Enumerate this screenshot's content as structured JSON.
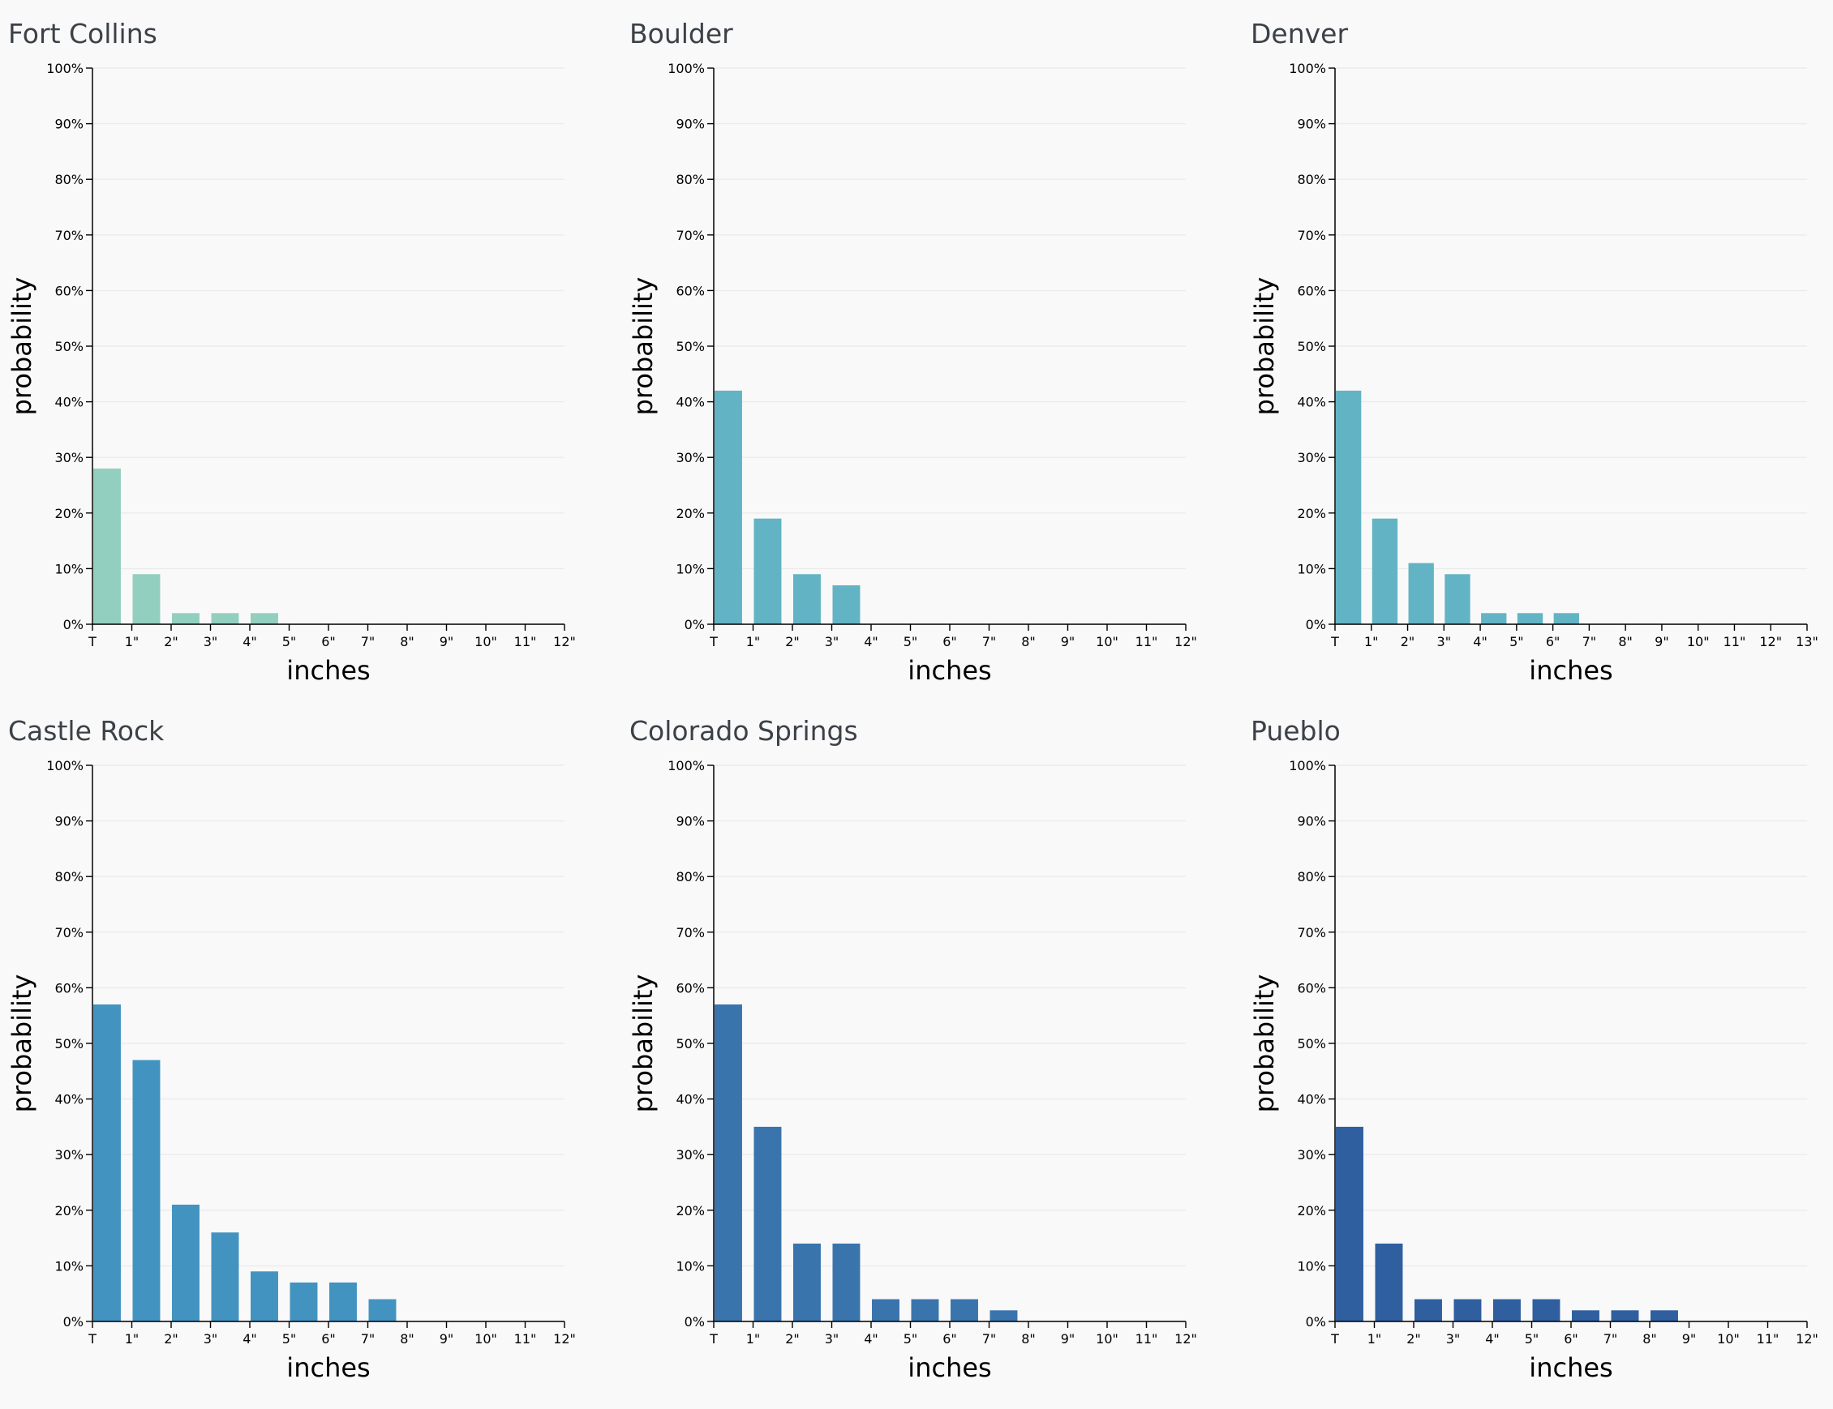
{
  "chart_data": [
    {
      "type": "histogram",
      "title": "Fort Collins",
      "x_label": "inches",
      "y_label": "probability",
      "color": "#93cfbf",
      "bins": [
        {
          "value": 0,
          "label": "T"
        },
        {
          "value": 1,
          "label": "1\""
        },
        {
          "value": 2,
          "label": "2\""
        },
        {
          "value": 3,
          "label": "3\""
        },
        {
          "value": 4,
          "label": "4\""
        },
        {
          "value": 5,
          "label": "5\""
        },
        {
          "value": 6,
          "label": "6\""
        },
        {
          "value": 7,
          "label": "7\""
        },
        {
          "value": 8,
          "label": "8\""
        },
        {
          "value": 9,
          "label": "9\""
        },
        {
          "value": 10,
          "label": "10\""
        },
        {
          "value": 11,
          "label": "11\""
        },
        {
          "value": 12,
          "label": "12\""
        }
      ],
      "values": [
        28,
        9,
        2,
        2,
        2,
        0,
        0,
        0,
        0,
        0,
        0,
        0
      ],
      "xlim": [
        0,
        12
      ],
      "ylim": [
        0,
        100
      ],
      "yticks": [
        {
          "value": 0,
          "label": "0%"
        },
        {
          "value": 10,
          "label": "10%"
        },
        {
          "value": 20,
          "label": "20%"
        },
        {
          "value": 30,
          "label": "30%"
        },
        {
          "value": 40,
          "label": "40%"
        },
        {
          "value": 50,
          "label": "50%"
        },
        {
          "value": 60,
          "label": "60%"
        },
        {
          "value": 70,
          "label": "70%"
        },
        {
          "value": 80,
          "label": "80%"
        },
        {
          "value": 90,
          "label": "90%"
        },
        {
          "value": 100,
          "label": "100%"
        }
      ],
      "grid": true
    },
    {
      "type": "histogram",
      "title": "Boulder",
      "x_label": "inches",
      "y_label": "probability",
      "color": "#62b4c4",
      "bins": [
        {
          "value": 0,
          "label": "T"
        },
        {
          "value": 1,
          "label": "1\""
        },
        {
          "value": 2,
          "label": "2\""
        },
        {
          "value": 3,
          "label": "3\""
        },
        {
          "value": 4,
          "label": "4\""
        },
        {
          "value": 5,
          "label": "5\""
        },
        {
          "value": 6,
          "label": "6\""
        },
        {
          "value": 7,
          "label": "7\""
        },
        {
          "value": 8,
          "label": "8\""
        },
        {
          "value": 9,
          "label": "9\""
        },
        {
          "value": 10,
          "label": "10\""
        },
        {
          "value": 11,
          "label": "11\""
        },
        {
          "value": 12,
          "label": "12\""
        }
      ],
      "values": [
        42,
        19,
        9,
        7,
        0,
        0,
        0,
        0,
        0,
        0,
        0,
        0
      ],
      "xlim": [
        0,
        12
      ],
      "ylim": [
        0,
        100
      ],
      "yticks": [
        {
          "value": 0,
          "label": "0%"
        },
        {
          "value": 10,
          "label": "10%"
        },
        {
          "value": 20,
          "label": "20%"
        },
        {
          "value": 30,
          "label": "30%"
        },
        {
          "value": 40,
          "label": "40%"
        },
        {
          "value": 50,
          "label": "50%"
        },
        {
          "value": 60,
          "label": "60%"
        },
        {
          "value": 70,
          "label": "70%"
        },
        {
          "value": 80,
          "label": "80%"
        },
        {
          "value": 90,
          "label": "90%"
        },
        {
          "value": 100,
          "label": "100%"
        }
      ],
      "grid": true
    },
    {
      "type": "histogram",
      "title": "Denver",
      "x_label": "inches",
      "y_label": "probability",
      "color": "#62b4c4",
      "bins": [
        {
          "value": 0,
          "label": "T"
        },
        {
          "value": 1,
          "label": "1\""
        },
        {
          "value": 2,
          "label": "2\""
        },
        {
          "value": 3,
          "label": "3\""
        },
        {
          "value": 4,
          "label": "4\""
        },
        {
          "value": 5,
          "label": "5\""
        },
        {
          "value": 6,
          "label": "6\""
        },
        {
          "value": 7,
          "label": "7\""
        },
        {
          "value": 8,
          "label": "8\""
        },
        {
          "value": 9,
          "label": "9\""
        },
        {
          "value": 10,
          "label": "10\""
        },
        {
          "value": 11,
          "label": "11\""
        },
        {
          "value": 12,
          "label": "12\""
        },
        {
          "value": 13,
          "label": "13\""
        }
      ],
      "values": [
        42,
        19,
        11,
        9,
        2,
        2,
        2,
        0,
        0,
        0,
        0,
        0,
        0
      ],
      "xlim": [
        0,
        13
      ],
      "ylim": [
        0,
        100
      ],
      "yticks": [
        {
          "value": 0,
          "label": "0%"
        },
        {
          "value": 10,
          "label": "10%"
        },
        {
          "value": 20,
          "label": "20%"
        },
        {
          "value": 30,
          "label": "30%"
        },
        {
          "value": 40,
          "label": "40%"
        },
        {
          "value": 50,
          "label": "50%"
        },
        {
          "value": 60,
          "label": "60%"
        },
        {
          "value": 70,
          "label": "70%"
        },
        {
          "value": 80,
          "label": "80%"
        },
        {
          "value": 90,
          "label": "90%"
        },
        {
          "value": 100,
          "label": "100%"
        }
      ],
      "grid": true
    },
    {
      "type": "histogram",
      "title": "Castle Rock",
      "x_label": "inches",
      "y_label": "probability",
      "color": "#4393c0",
      "bins": [
        {
          "value": 0,
          "label": "T"
        },
        {
          "value": 1,
          "label": "1\""
        },
        {
          "value": 2,
          "label": "2\""
        },
        {
          "value": 3,
          "label": "3\""
        },
        {
          "value": 4,
          "label": "4\""
        },
        {
          "value": 5,
          "label": "5\""
        },
        {
          "value": 6,
          "label": "6\""
        },
        {
          "value": 7,
          "label": "7\""
        },
        {
          "value": 8,
          "label": "8\""
        },
        {
          "value": 9,
          "label": "9\""
        },
        {
          "value": 10,
          "label": "10\""
        },
        {
          "value": 11,
          "label": "11\""
        },
        {
          "value": 12,
          "label": "12\""
        }
      ],
      "values": [
        57,
        47,
        21,
        16,
        9,
        7,
        7,
        4,
        0,
        0,
        0,
        0
      ],
      "xlim": [
        0,
        12
      ],
      "ylim": [
        0,
        100
      ],
      "yticks": [
        {
          "value": 0,
          "label": "0%"
        },
        {
          "value": 10,
          "label": "10%"
        },
        {
          "value": 20,
          "label": "20%"
        },
        {
          "value": 30,
          "label": "30%"
        },
        {
          "value": 40,
          "label": "40%"
        },
        {
          "value": 50,
          "label": "50%"
        },
        {
          "value": 60,
          "label": "60%"
        },
        {
          "value": 70,
          "label": "70%"
        },
        {
          "value": 80,
          "label": "80%"
        },
        {
          "value": 90,
          "label": "90%"
        },
        {
          "value": 100,
          "label": "100%"
        }
      ],
      "grid": true
    },
    {
      "type": "histogram",
      "title": "Colorado Springs",
      "x_label": "inches",
      "y_label": "probability",
      "color": "#3a74ad",
      "bins": [
        {
          "value": 0,
          "label": "T"
        },
        {
          "value": 1,
          "label": "1\""
        },
        {
          "value": 2,
          "label": "2\""
        },
        {
          "value": 3,
          "label": "3\""
        },
        {
          "value": 4,
          "label": "4\""
        },
        {
          "value": 5,
          "label": "5\""
        },
        {
          "value": 6,
          "label": "6\""
        },
        {
          "value": 7,
          "label": "7\""
        },
        {
          "value": 8,
          "label": "8\""
        },
        {
          "value": 9,
          "label": "9\""
        },
        {
          "value": 10,
          "label": "10\""
        },
        {
          "value": 11,
          "label": "11\""
        },
        {
          "value": 12,
          "label": "12\""
        }
      ],
      "values": [
        57,
        35,
        14,
        14,
        4,
        4,
        4,
        2,
        0,
        0,
        0,
        0
      ],
      "xlim": [
        0,
        12
      ],
      "ylim": [
        0,
        100
      ],
      "yticks": [
        {
          "value": 0,
          "label": "0%"
        },
        {
          "value": 10,
          "label": "10%"
        },
        {
          "value": 20,
          "label": "20%"
        },
        {
          "value": 30,
          "label": "30%"
        },
        {
          "value": 40,
          "label": "40%"
        },
        {
          "value": 50,
          "label": "50%"
        },
        {
          "value": 60,
          "label": "60%"
        },
        {
          "value": 70,
          "label": "70%"
        },
        {
          "value": 80,
          "label": "80%"
        },
        {
          "value": 90,
          "label": "90%"
        },
        {
          "value": 100,
          "label": "100%"
        }
      ],
      "grid": true
    },
    {
      "type": "histogram",
      "title": "Pueblo",
      "x_label": "inches",
      "y_label": "probability",
      "color": "#2f5f9f",
      "bins": [
        {
          "value": 0,
          "label": "T"
        },
        {
          "value": 1,
          "label": "1\""
        },
        {
          "value": 2,
          "label": "2\""
        },
        {
          "value": 3,
          "label": "3\""
        },
        {
          "value": 4,
          "label": "4\""
        },
        {
          "value": 5,
          "label": "5\""
        },
        {
          "value": 6,
          "label": "6\""
        },
        {
          "value": 7,
          "label": "7\""
        },
        {
          "value": 8,
          "label": "8\""
        },
        {
          "value": 9,
          "label": "9\""
        },
        {
          "value": 10,
          "label": "10\""
        },
        {
          "value": 11,
          "label": "11\""
        },
        {
          "value": 12,
          "label": "12\""
        }
      ],
      "values": [
        35,
        14,
        4,
        4,
        4,
        4,
        2,
        2,
        2,
        0,
        0,
        0
      ],
      "xlim": [
        0,
        12
      ],
      "ylim": [
        0,
        100
      ],
      "yticks": [
        {
          "value": 0,
          "label": "0%"
        },
        {
          "value": 10,
          "label": "10%"
        },
        {
          "value": 20,
          "label": "20%"
        },
        {
          "value": 30,
          "label": "30%"
        },
        {
          "value": 40,
          "label": "40%"
        },
        {
          "value": 50,
          "label": "50%"
        },
        {
          "value": 60,
          "label": "60%"
        },
        {
          "value": 70,
          "label": "70%"
        },
        {
          "value": 80,
          "label": "80%"
        },
        {
          "value": 90,
          "label": "90%"
        },
        {
          "value": 100,
          "label": "100%"
        }
      ],
      "grid": true
    }
  ]
}
